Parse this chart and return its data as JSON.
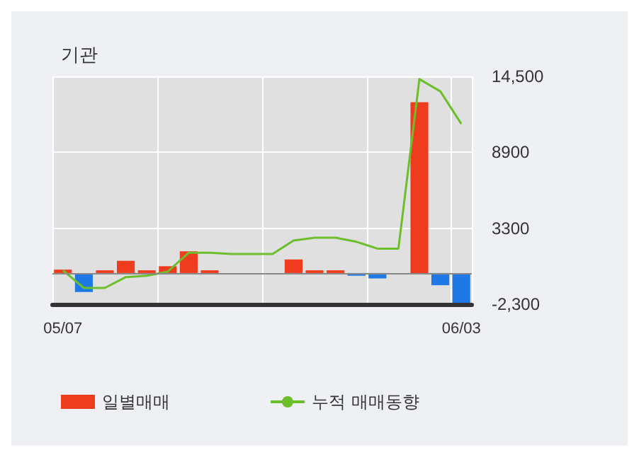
{
  "chart_data": {
    "type": "bar",
    "title": "기관",
    "categories": [
      "05/07",
      null,
      null,
      null,
      null,
      null,
      null,
      null,
      null,
      null,
      null,
      null,
      null,
      null,
      null,
      null,
      null,
      null,
      null,
      "06/03"
    ],
    "series": [
      {
        "name": "일별매매",
        "color": "#f03c1e",
        "values": [
          250,
          -1400,
          200,
          900,
          200,
          500,
          1600,
          200,
          0,
          0,
          0,
          1000,
          200,
          200,
          -200,
          -400,
          0,
          12600,
          -900,
          -2200
        ],
        "colors": [
          "#f03c1e",
          "#1e78e6",
          "#f03c1e",
          "#f03c1e",
          "#f03c1e",
          "#f03c1e",
          "#f03c1e",
          "#f03c1e",
          "#f03c1e",
          "#f03c1e",
          "#f03c1e",
          "#f03c1e",
          "#f03c1e",
          "#f03c1e",
          "#1e78e6",
          "#1e78e6",
          "#f03c1e",
          "#f03c1e",
          "#1e78e6",
          "#1e78e6"
        ]
      },
      {
        "name": "누적 매매동향",
        "type": "line",
        "color": "#6cbf2a",
        "values": [
          200,
          -1100,
          -1100,
          -300,
          -200,
          100,
          1500,
          1500,
          1400,
          1400,
          1400,
          2400,
          2600,
          2600,
          2300,
          1800,
          1800,
          14300,
          13400,
          11000
        ]
      }
    ],
    "ylim": [
      -2300,
      14500
    ],
    "yticks": [
      {
        "value": -2300,
        "label": "-2,300"
      },
      3300,
      8900,
      {
        "value": 14500,
        "label": "14,500"
      }
    ],
    "ref_lines": [
      {
        "axis": "y",
        "value": 0,
        "color": "#888888"
      }
    ],
    "grid": true,
    "legend": "bottom",
    "marker": "none",
    "line_style": "solid"
  }
}
